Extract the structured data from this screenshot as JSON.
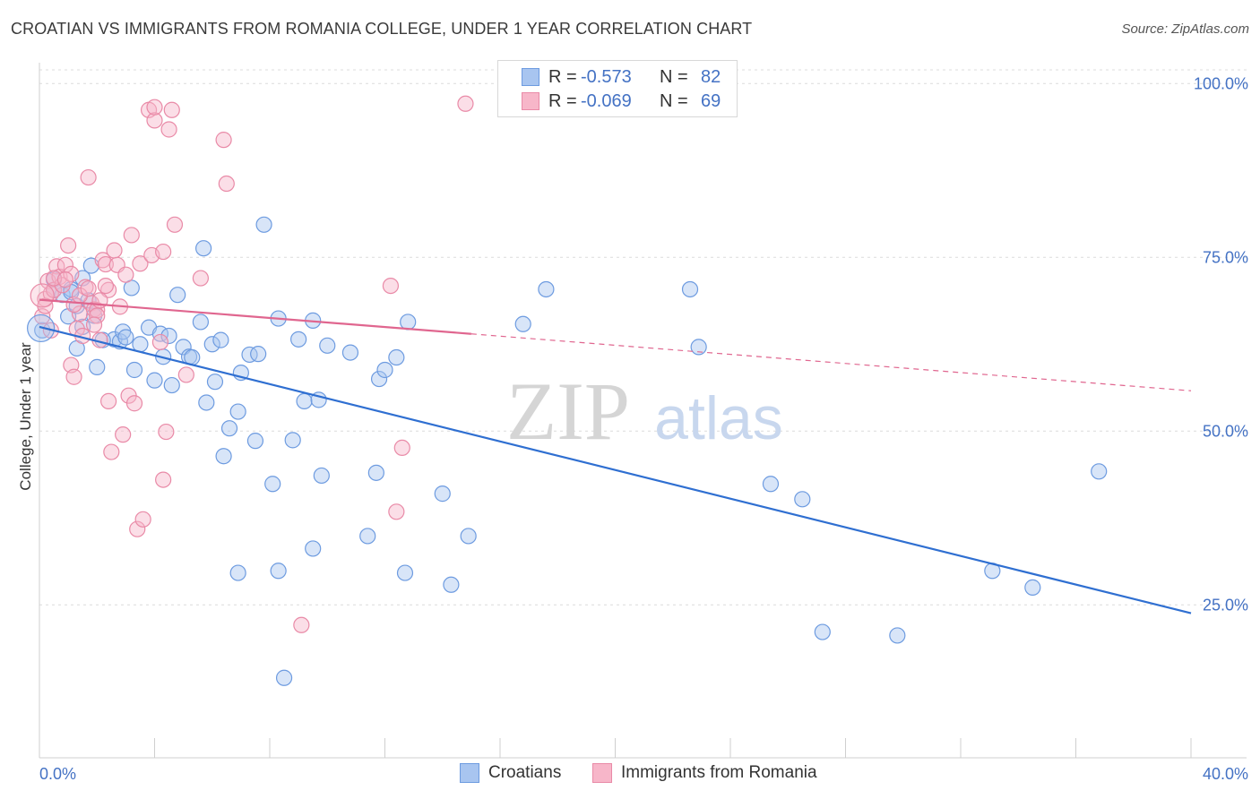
{
  "title": "CROATIAN VS IMMIGRANTS FROM ROMANIA COLLEGE, UNDER 1 YEAR CORRELATION CHART",
  "source": "Source: ZipAtlas.com",
  "watermark": {
    "zip": "ZIP",
    "atlas": "atlas"
  },
  "stats_legend": [
    {
      "r_label": "R =",
      "r_value": "-0.573",
      "n_label": "N =",
      "n_value": "82",
      "color": "#a8c5f0",
      "border": "#6d9be0"
    },
    {
      "r_label": "R =",
      "r_value": "-0.069",
      "n_label": "N =",
      "n_value": "69",
      "color": "#f7b6c9",
      "border": "#e98aa7"
    }
  ],
  "bottom_legend": [
    {
      "label": "Croatians",
      "color": "#a8c5f0",
      "border": "#6d9be0"
    },
    {
      "label": "Immigrants from Romania",
      "color": "#f7b6c9",
      "border": "#e98aa7"
    }
  ],
  "chart_data": {
    "type": "scatter",
    "title": "CROATIAN VS IMMIGRANTS FROM ROMANIA COLLEGE, UNDER 1 YEAR CORRELATION CHART",
    "xlabel": "",
    "ylabel": "College, Under 1 year",
    "xlim": [
      0,
      40
    ],
    "ylim": [
      3,
      103
    ],
    "x_tick_labels": [
      {
        "value": 0,
        "label": "0.0%"
      },
      {
        "value": 40,
        "label": "40.0%"
      }
    ],
    "y_tick_labels": [
      {
        "value": 25,
        "label": "25.0%"
      },
      {
        "value": 50,
        "label": "50.0%"
      },
      {
        "value": 75,
        "label": "75.0%"
      },
      {
        "value": 100,
        "label": "100.0%"
      }
    ],
    "grid": true,
    "legend_position": "top-center",
    "series": [
      {
        "name": "Croatians",
        "color": "#a8c5f0",
        "stroke": "#6d9be0",
        "trend": {
          "x0": 0,
          "y0": 65.0,
          "x1": 40,
          "y1": 23.8,
          "solid_to": 40,
          "color": "#2f6fd1"
        },
        "points": [
          [
            0.1,
            64.5
          ],
          [
            0.5,
            71.8
          ],
          [
            0.8,
            69.6
          ],
          [
            1.0,
            66.5
          ],
          [
            1.1,
            70.4
          ],
          [
            1.3,
            68.0
          ],
          [
            1.3,
            61.9
          ],
          [
            1.5,
            72.0
          ],
          [
            1.5,
            65.0
          ],
          [
            1.7,
            68.8
          ],
          [
            1.8,
            73.8
          ],
          [
            1.9,
            66.6
          ],
          [
            2.0,
            59.2
          ],
          [
            2.6,
            63.2
          ],
          [
            2.8,
            62.9
          ],
          [
            2.9,
            64.3
          ],
          [
            3.0,
            63.5
          ],
          [
            3.2,
            70.6
          ],
          [
            3.3,
            58.8
          ],
          [
            3.5,
            62.5
          ],
          [
            3.8,
            64.9
          ],
          [
            4.0,
            57.3
          ],
          [
            4.2,
            64.0
          ],
          [
            4.3,
            60.7
          ],
          [
            4.5,
            63.7
          ],
          [
            4.6,
            56.6
          ],
          [
            4.8,
            69.6
          ],
          [
            5.0,
            62.1
          ],
          [
            5.2,
            60.7
          ],
          [
            5.3,
            60.6
          ],
          [
            5.6,
            65.7
          ],
          [
            5.7,
            76.3
          ],
          [
            5.8,
            54.1
          ],
          [
            6.0,
            62.5
          ],
          [
            6.1,
            57.1
          ],
          [
            6.3,
            63.1
          ],
          [
            6.4,
            46.4
          ],
          [
            6.6,
            50.4
          ],
          [
            6.9,
            52.8
          ],
          [
            7.0,
            58.4
          ],
          [
            7.3,
            61.0
          ],
          [
            7.5,
            48.6
          ],
          [
            7.6,
            61.1
          ],
          [
            7.8,
            79.7
          ],
          [
            8.1,
            42.4
          ],
          [
            8.3,
            66.2
          ],
          [
            8.5,
            14.5
          ],
          [
            8.8,
            48.7
          ],
          [
            9.0,
            63.2
          ],
          [
            9.2,
            54.3
          ],
          [
            9.5,
            65.9
          ],
          [
            9.7,
            54.5
          ],
          [
            9.8,
            43.6
          ],
          [
            10.0,
            62.3
          ],
          [
            10.8,
            61.3
          ],
          [
            11.4,
            34.9
          ],
          [
            11.7,
            44.0
          ],
          [
            11.8,
            57.5
          ],
          [
            12.0,
            58.8
          ],
          [
            12.4,
            60.6
          ],
          [
            12.8,
            65.7
          ],
          [
            14.0,
            41.0
          ],
          [
            14.3,
            27.9
          ],
          [
            14.9,
            34.9
          ],
          [
            16.8,
            65.4
          ],
          [
            17.6,
            70.4
          ],
          [
            8.3,
            29.9
          ],
          [
            9.5,
            33.1
          ],
          [
            6.9,
            29.6
          ],
          [
            12.7,
            29.6
          ],
          [
            22.6,
            70.4
          ],
          [
            22.9,
            62.1
          ],
          [
            25.4,
            42.4
          ],
          [
            26.5,
            40.2
          ],
          [
            33.1,
            29.9
          ],
          [
            34.5,
            27.5
          ],
          [
            36.8,
            44.2
          ],
          [
            27.2,
            21.1
          ],
          [
            29.8,
            20.6
          ],
          [
            0.5,
            70.3
          ],
          [
            1.1,
            70.0
          ],
          [
            2.2,
            63.1
          ]
        ]
      },
      {
        "name": "Immigrants from Romania",
        "color": "#f7b6c9",
        "stroke": "#e98aa7",
        "trend": {
          "x0": 0,
          "y0": 68.9,
          "x1": 40,
          "y1": 55.8,
          "solid_to": 15,
          "color": "#e0668f"
        },
        "points": [
          [
            0.1,
            66.5
          ],
          [
            0.2,
            69.0
          ],
          [
            0.3,
            71.6
          ],
          [
            0.4,
            69.8
          ],
          [
            0.5,
            70.3
          ],
          [
            0.6,
            73.7
          ],
          [
            0.7,
            72.2
          ],
          [
            0.8,
            71.0
          ],
          [
            0.9,
            73.9
          ],
          [
            1.0,
            76.7
          ],
          [
            1.1,
            72.6
          ],
          [
            1.1,
            59.5
          ],
          [
            1.2,
            57.8
          ],
          [
            1.3,
            64.7
          ],
          [
            1.4,
            66.9
          ],
          [
            1.5,
            63.7
          ],
          [
            1.6,
            70.7
          ],
          [
            1.7,
            86.5
          ],
          [
            1.8,
            68.4
          ],
          [
            1.9,
            67.5
          ],
          [
            2.0,
            67.4
          ],
          [
            2.0,
            66.6
          ],
          [
            2.1,
            63.1
          ],
          [
            2.2,
            74.6
          ],
          [
            2.3,
            74.0
          ],
          [
            2.4,
            70.3
          ],
          [
            2.4,
            54.3
          ],
          [
            2.5,
            47.0
          ],
          [
            2.6,
            76.0
          ],
          [
            2.7,
            73.9
          ],
          [
            2.8,
            67.9
          ],
          [
            2.9,
            49.5
          ],
          [
            3.0,
            72.5
          ],
          [
            3.1,
            55.1
          ],
          [
            3.2,
            78.2
          ],
          [
            3.3,
            54.0
          ],
          [
            3.4,
            35.9
          ],
          [
            3.5,
            74.1
          ],
          [
            3.6,
            37.3
          ],
          [
            3.8,
            96.2
          ],
          [
            3.9,
            75.3
          ],
          [
            4.0,
            94.7
          ],
          [
            4.0,
            96.6
          ],
          [
            4.2,
            62.8
          ],
          [
            4.3,
            75.8
          ],
          [
            4.3,
            43.0
          ],
          [
            4.4,
            49.9
          ],
          [
            4.5,
            93.4
          ],
          [
            4.6,
            96.2
          ],
          [
            4.7,
            79.7
          ],
          [
            5.1,
            58.1
          ],
          [
            5.6,
            72.0
          ],
          [
            6.4,
            91.9
          ],
          [
            6.5,
            85.6
          ],
          [
            9.1,
            22.1
          ],
          [
            12.2,
            70.9
          ],
          [
            12.4,
            38.4
          ],
          [
            12.6,
            47.6
          ],
          [
            14.8,
            97.1
          ],
          [
            0.2,
            68.0
          ],
          [
            0.4,
            64.5
          ],
          [
            0.5,
            72.0
          ],
          [
            0.9,
            71.8
          ],
          [
            1.2,
            68.2
          ],
          [
            1.4,
            69.5
          ],
          [
            1.7,
            70.5
          ],
          [
            1.9,
            65.3
          ],
          [
            2.1,
            68.8
          ],
          [
            2.3,
            70.9
          ]
        ]
      }
    ]
  }
}
